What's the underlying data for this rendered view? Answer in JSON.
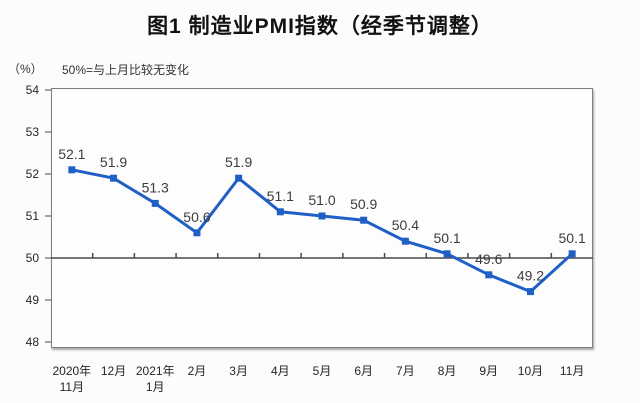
{
  "page": {
    "title": "图1 制造业PMI指数（经季节调整）",
    "unit_label": "（%）",
    "note": "50%=与上月比较无变化"
  },
  "colors": {
    "line": "#1f5fc6",
    "marker": "#1f5fc6",
    "data_label": "#3d3d3d",
    "axis_text": "#262626",
    "plot_border": "#7f7f7f",
    "reference_line": "#4a4a4a",
    "tick": "#4a4a4a"
  },
  "chart_data": {
    "type": "line",
    "title": "图1 制造业PMI指数（经季节调整）",
    "ylabel": "（%）",
    "annotation": "50%=与上月比较无变化",
    "categories": [
      [
        "2020年",
        "11月"
      ],
      [
        "12月"
      ],
      [
        "2021年",
        "1月"
      ],
      [
        "2月"
      ],
      [
        "3月"
      ],
      [
        "4月"
      ],
      [
        "5月"
      ],
      [
        "6月"
      ],
      [
        "7月"
      ],
      [
        "8月"
      ],
      [
        "9月"
      ],
      [
        "10月"
      ],
      [
        "11月"
      ]
    ],
    "values": [
      52.1,
      51.9,
      51.3,
      50.6,
      51.9,
      51.1,
      51.0,
      50.9,
      50.4,
      50.1,
      49.6,
      49.2,
      50.1
    ],
    "value_labels": [
      "52.1",
      "51.9",
      "51.3",
      "50.6",
      "51.9",
      "51.1",
      "51.0",
      "50.9",
      "50.4",
      "50.1",
      "49.6",
      "49.2",
      "50.1"
    ],
    "yticks": [
      "54",
      "53",
      "52",
      "51",
      "50",
      "49",
      "48"
    ],
    "ylim": [
      48,
      54
    ],
    "ytick_step": 1,
    "reference_line": 50,
    "grid": false,
    "legend": false,
    "marker": "square",
    "line_width": 3
  }
}
